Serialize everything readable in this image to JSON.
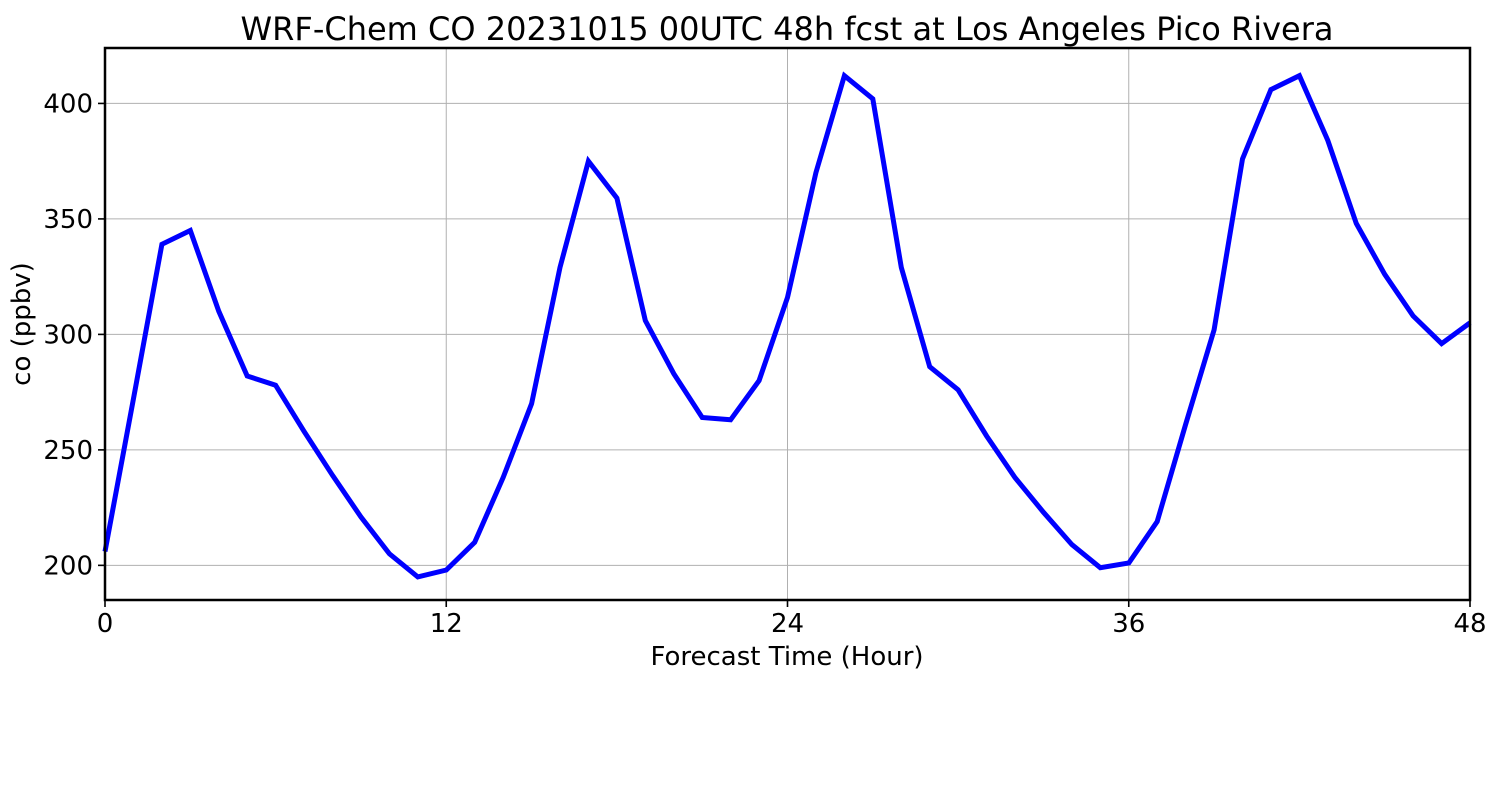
{
  "chart_data": {
    "type": "line",
    "title": "WRF-Chem CO  20231015 00UTC 48h fcst at Los Angeles Pico Rivera",
    "xlabel": "Forecast Time (Hour)",
    "ylabel": "co  (ppbv)",
    "xlim": [
      0,
      48
    ],
    "ylim": [
      185,
      424
    ],
    "xticks": [
      0,
      12,
      24,
      36,
      48
    ],
    "yticks": [
      200,
      250,
      300,
      350,
      400
    ],
    "grid": true,
    "series": [
      {
        "color": "#0000ff",
        "x": [
          0,
          1,
          2,
          3,
          4,
          5,
          6,
          7,
          8,
          9,
          10,
          11,
          12,
          13,
          14,
          15,
          16,
          17,
          18,
          19,
          20,
          21,
          22,
          23,
          24,
          25,
          26,
          27,
          28,
          29,
          30,
          31,
          32,
          33,
          34,
          35,
          36,
          37,
          38,
          39,
          40,
          41,
          42,
          43,
          44,
          45,
          46,
          47,
          48
        ],
        "y": [
          206,
          272,
          339,
          345,
          310,
          282,
          278,
          258,
          239,
          221,
          205,
          195,
          198,
          210,
          238,
          270,
          329,
          375,
          359,
          306,
          283,
          264,
          263,
          280,
          316,
          370,
          412,
          402,
          329,
          286,
          276,
          256,
          238,
          223,
          209,
          199,
          201,
          219,
          261,
          302,
          376,
          406,
          412,
          384,
          348,
          326,
          308,
          296,
          305
        ]
      }
    ]
  }
}
